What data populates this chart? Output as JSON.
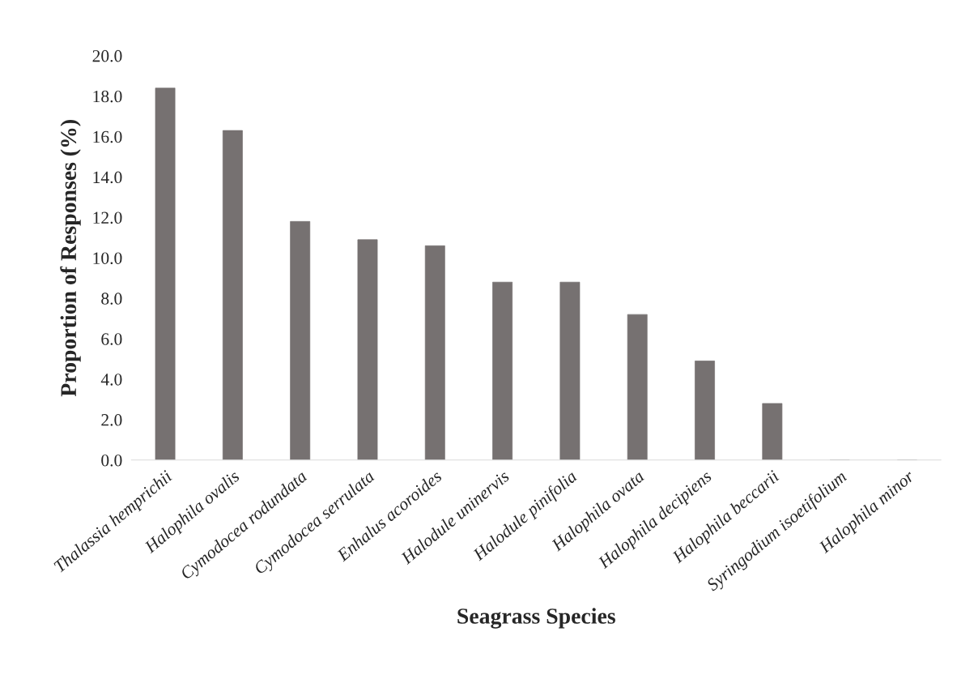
{
  "chart_data": {
    "type": "bar",
    "xlabel": "Seagrass Species",
    "ylabel": "Proportion of Responses (%)",
    "categories": [
      "Thalassia hemprichii",
      "Halophila ovalis",
      "Cymodocea rodundata",
      "Cymodocea serrulata",
      "Enhalus acoroides",
      "Halodule uninervis",
      "Halodule pinifolia",
      "Halophila ovata",
      "Halophila decipiens",
      "Halophila beccarii",
      "Syringodium isoetifolium",
      "Halophila minor"
    ],
    "values": [
      18.4,
      16.3,
      11.8,
      10.9,
      10.6,
      8.8,
      8.8,
      7.2,
      4.9,
      2.8,
      0,
      0
    ],
    "color": "#767171",
    "ylim": [
      0,
      20
    ],
    "yticks": [
      {
        "value": 0,
        "label": "0.0"
      },
      {
        "value": 2,
        "label": "2.0"
      },
      {
        "value": 4,
        "label": "4.0"
      },
      {
        "value": 6,
        "label": "6.0"
      },
      {
        "value": 8,
        "label": "8.0"
      },
      {
        "value": 10,
        "label": "10.0"
      },
      {
        "value": 12,
        "label": "12.0"
      },
      {
        "value": 14,
        "label": "14.0"
      },
      {
        "value": 16,
        "label": "16.0"
      },
      {
        "value": 18,
        "label": "18.0"
      },
      {
        "value": 20,
        "label": "20.0"
      }
    ],
    "grid": false,
    "legend": false
  }
}
